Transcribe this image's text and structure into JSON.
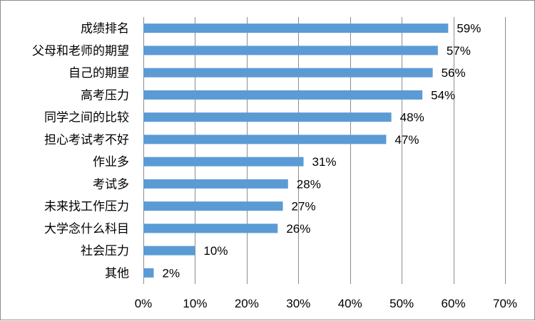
{
  "chart_data": {
    "type": "bar",
    "orientation": "horizontal",
    "categories": [
      "成绩排名",
      "父母和老师的期望",
      "自己的期望",
      "高考压力",
      "同学之间的比较",
      "担心考试考不好",
      "作业多",
      "考试多",
      "未来找工作压力",
      "大学念什么科目",
      "社会压力",
      "其他"
    ],
    "values": [
      59,
      57,
      56,
      54,
      48,
      47,
      31,
      28,
      27,
      26,
      10,
      2
    ],
    "value_labels": [
      "59%",
      "57%",
      "56%",
      "54%",
      "48%",
      "47%",
      "31%",
      "28%",
      "27%",
      "26%",
      "10%",
      "2%"
    ],
    "xlim": [
      0,
      70
    ],
    "x_ticks": [
      "0%",
      "10%",
      "20%",
      "30%",
      "40%",
      "50%",
      "60%",
      "70%"
    ],
    "title": "",
    "xlabel": "",
    "ylabel": "",
    "grid": "vertical",
    "legend": "none",
    "bar_color": "#5b9bd5",
    "grid_color": "#8c8c8c"
  }
}
